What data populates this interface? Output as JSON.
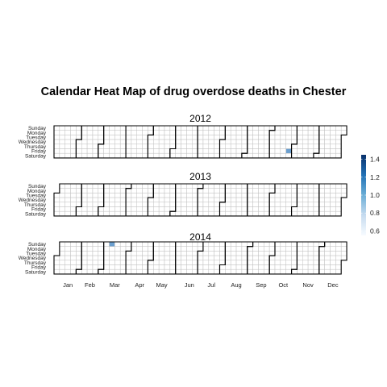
{
  "chart_data": {
    "type": "heatmap",
    "title": "Calendar Heat Map of drug overdose deaths in Chester",
    "years": [
      "2012",
      "2013",
      "2014"
    ],
    "days": [
      "Sunday",
      "Monday",
      "Tuesday",
      "Wednesday",
      "Thursday",
      "Friday",
      "Saturday"
    ],
    "months": [
      "Jan",
      "Feb",
      "Mar",
      "Apr",
      "May",
      "Jun",
      "Jul",
      "Aug",
      "Sep",
      "Oct",
      "Nov",
      "Dec"
    ],
    "legend": {
      "ticks": [
        "1.4",
        "1.2",
        "1.0",
        "0.8",
        "0.6"
      ],
      "tick_values": [
        1.4,
        1.2,
        1.0,
        0.8,
        0.6
      ],
      "range": [
        0.55,
        1.45
      ],
      "colors": [
        "#f7fbff",
        "#c6dbef",
        "#6baed6",
        "#2171b5",
        "#08306b"
      ]
    },
    "cells": [
      {
        "date": "2012-10-26",
        "value": 1,
        "color": "#6b9fcf"
      },
      {
        "date": "2014-03-09",
        "value": 1,
        "color": "#6b9fcf"
      }
    ],
    "grid": true,
    "legend_placement": "right"
  }
}
